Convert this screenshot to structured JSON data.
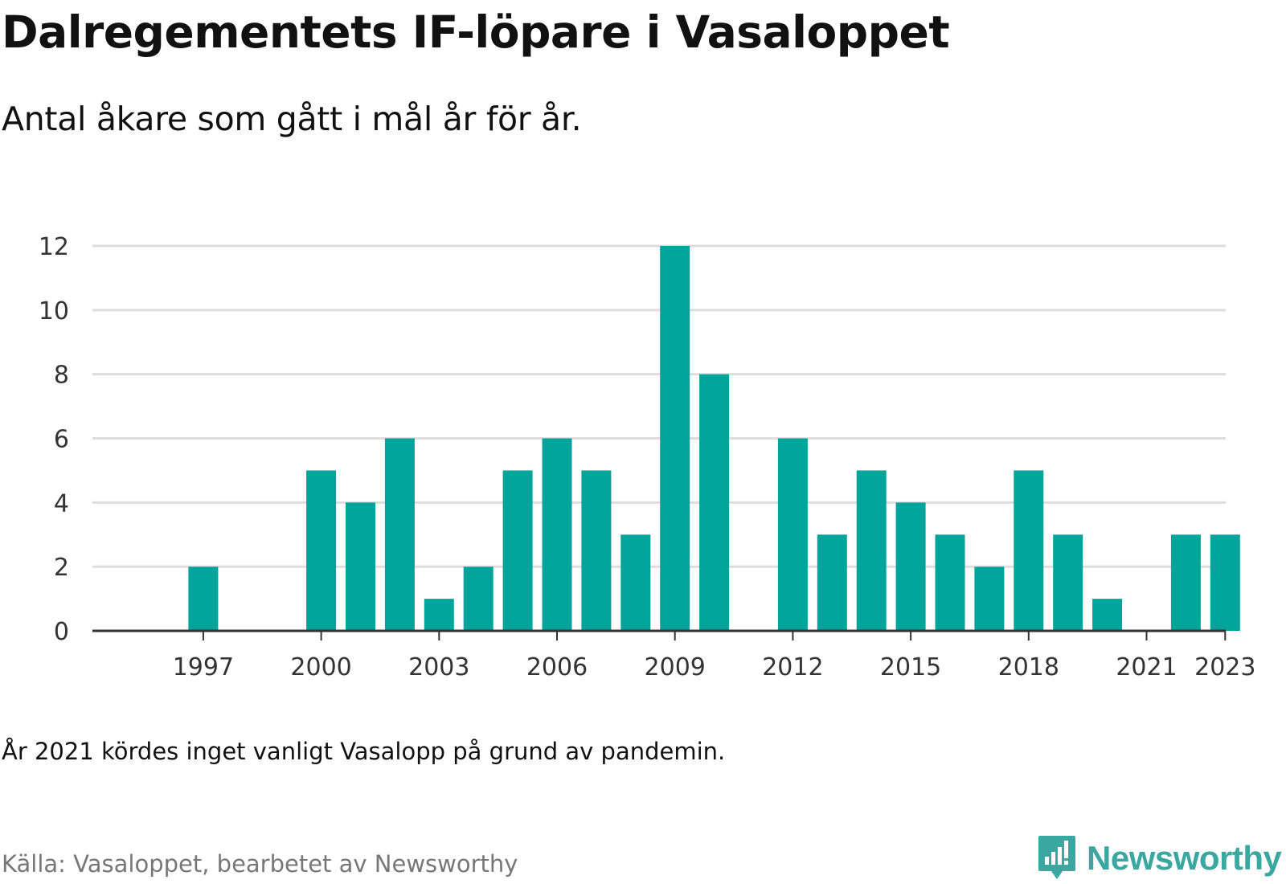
{
  "title": "Dalregementets IF-löpare i Vasaloppet",
  "subtitle": "Antal åkare som gått i mål år för år.",
  "note": "År 2021 kördes inget vanligt Vasalopp på grund av pandemin.",
  "source": "Källa: Vasaloppet, bearbetet av Newsworthy",
  "brand": {
    "name": "Newsworthy",
    "icon": "newsworthy-logo-icon",
    "color": "#3aa7a0"
  },
  "colors": {
    "bar": "#00a49a",
    "grid": "#dddddd",
    "axis": "#333333"
  },
  "chart_data": {
    "type": "bar",
    "categories": [
      "1996",
      "1997",
      "1998",
      "1999",
      "2000",
      "2001",
      "2002",
      "2003",
      "2004",
      "2005",
      "2006",
      "2007",
      "2008",
      "2009",
      "2010",
      "2011",
      "2012",
      "2013",
      "2014",
      "2015",
      "2016",
      "2017",
      "2018",
      "2019",
      "2020",
      "2021",
      "2022",
      "2023"
    ],
    "values": [
      0,
      2,
      0,
      0,
      5,
      4,
      6,
      1,
      2,
      5,
      6,
      5,
      3,
      12,
      8,
      0,
      6,
      3,
      5,
      4,
      3,
      2,
      5,
      3,
      1,
      0,
      3,
      3
    ],
    "x_ticks": [
      "1997",
      "2000",
      "2003",
      "2006",
      "2009",
      "2012",
      "2015",
      "2018",
      "2021",
      "2023"
    ],
    "y_ticks": [
      0,
      2,
      4,
      6,
      8,
      10,
      12
    ],
    "ylim": [
      0,
      12
    ],
    "grid": true,
    "legend": "none"
  }
}
